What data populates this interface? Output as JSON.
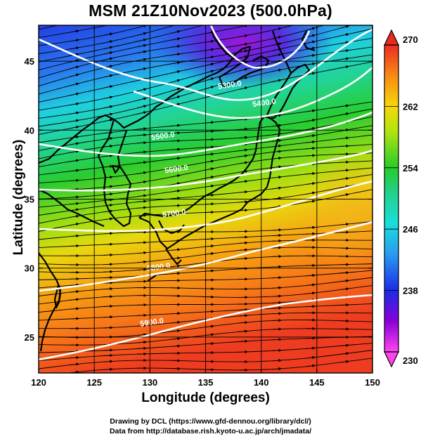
{
  "title": "MSM 21Z10Nov2023 (500.0hPa)",
  "xaxis": {
    "label": "Longitude (degrees)",
    "ticks": [
      120,
      125,
      130,
      135,
      140,
      145,
      150
    ],
    "range": [
      120,
      150
    ]
  },
  "yaxis": {
    "label": "Latitude  (degrees)",
    "ticks": [
      25,
      30,
      35,
      40,
      45
    ],
    "range": [
      22.4,
      47.6
    ]
  },
  "colorbar": {
    "ticks": [
      230,
      238,
      246,
      254,
      262,
      270
    ],
    "range": [
      230,
      270
    ]
  },
  "contours": [
    {
      "label": "5300.0",
      "lon": 137.2,
      "lat": 43.1
    },
    {
      "label": "5400.0",
      "lon": 140.3,
      "lat": 41.8
    },
    {
      "label": "5500.0",
      "lon": 131.2,
      "lat": 39.4
    },
    {
      "label": "5600.0",
      "lon": 132.4,
      "lat": 37.0
    },
    {
      "label": "5700.0",
      "lon": 132.2,
      "lat": 33.8
    },
    {
      "label": "5800.0",
      "lon": 130.8,
      "lat": 29.9
    },
    {
      "label": "5900.0",
      "lon": 130.2,
      "lat": 25.9
    }
  ],
  "credits": [
    "Drawing by DCL (https://www.gfd-dennou.org/library/dcl/)",
    "Data from http://database.rish.kyoto-u.ac.jp/arch/jmadata/"
  ]
}
